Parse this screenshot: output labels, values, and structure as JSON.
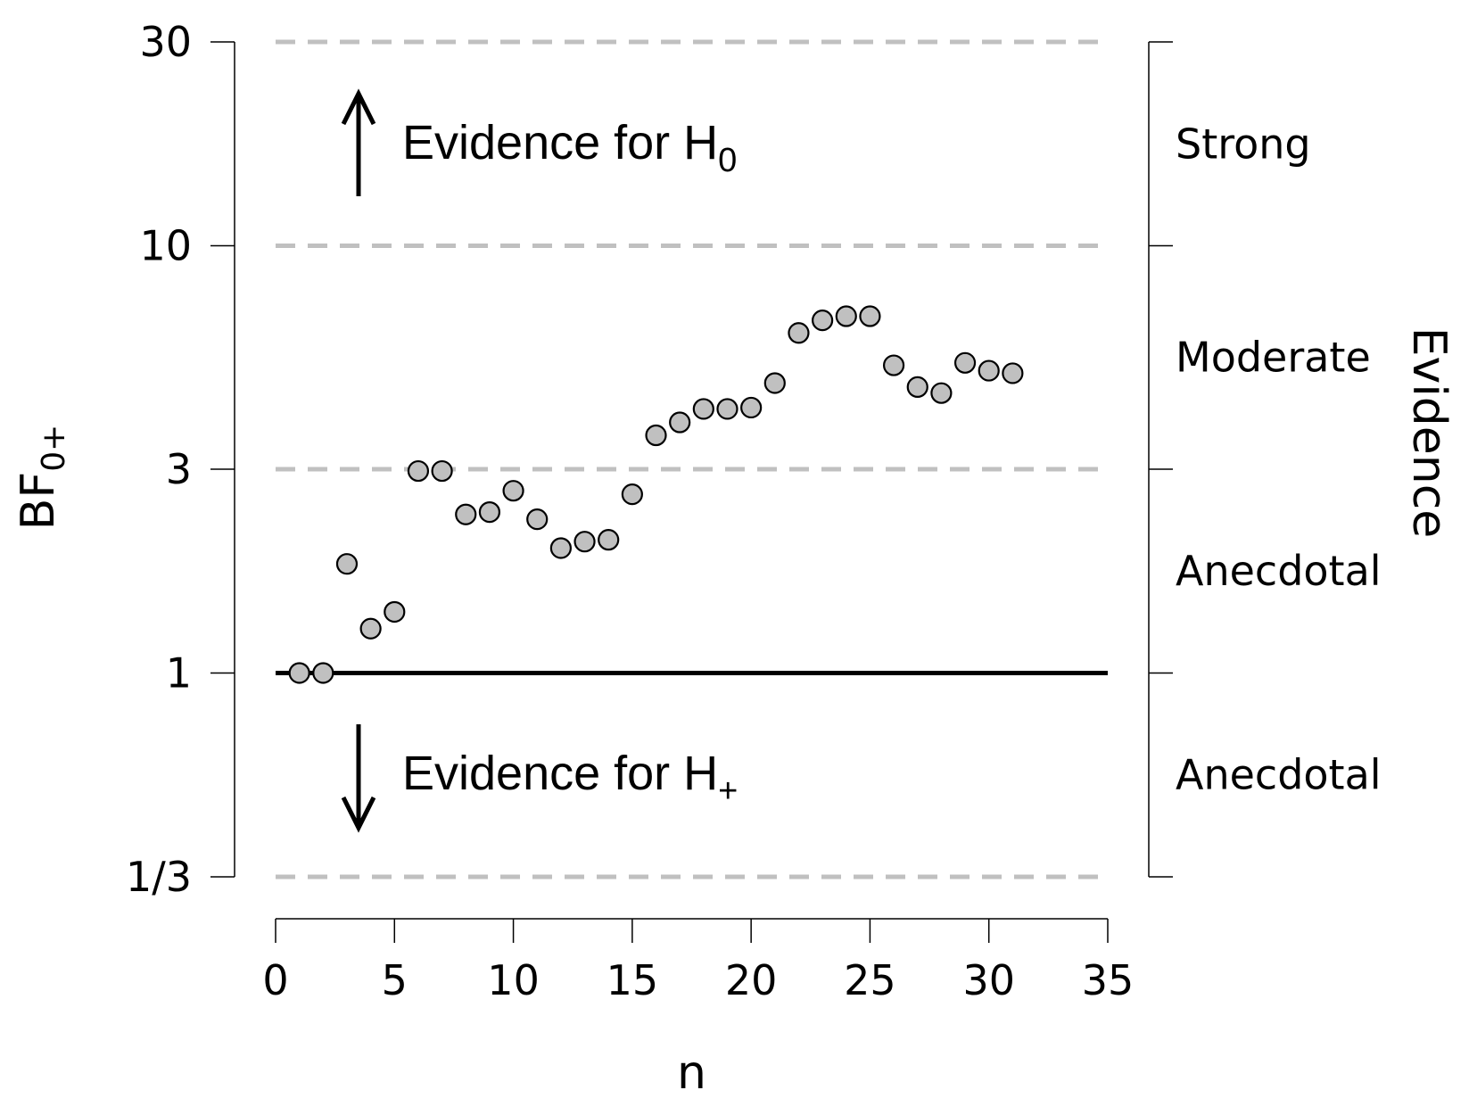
{
  "chart_data": {
    "type": "scatter",
    "xlabel": "n",
    "ylabel": "BF",
    "ylabel_sub": "0+",
    "y_scale": "log",
    "xlim": [
      0,
      35
    ],
    "ylim": [
      0.3333,
      30
    ],
    "x_ticks": [
      0,
      5,
      10,
      15,
      20,
      25,
      30,
      35
    ],
    "x_tick_labels": [
      "0",
      "5",
      "10",
      "15",
      "20",
      "25",
      "30",
      "35"
    ],
    "y_ticks": [
      0.3333,
      1,
      3,
      10,
      30
    ],
    "y_tick_labels": [
      "1/3",
      "1",
      "3",
      "10",
      "30"
    ],
    "dashed_reference_lines": [
      0.3333,
      3,
      10,
      30
    ],
    "solid_reference_line": 1,
    "right_axis_title": "Evidence",
    "evidence_categories": [
      {
        "label": "Strong",
        "from": 10,
        "to": 30
      },
      {
        "label": "Moderate",
        "from": 3,
        "to": 10
      },
      {
        "label": "Anecdotal",
        "from": 1,
        "to": 3
      },
      {
        "label": "Anecdotal",
        "from": 0.3333,
        "to": 1
      }
    ],
    "annotations": [
      {
        "text": "Evidence for H",
        "sub": "0",
        "direction": "up"
      },
      {
        "text": "Evidence for H",
        "sub": "+",
        "direction": "down"
      }
    ],
    "series": [
      {
        "x": [
          1,
          2,
          3,
          4,
          5,
          6,
          7,
          8,
          9,
          10,
          11,
          12,
          13,
          14,
          15,
          16,
          17,
          18,
          19,
          20,
          21,
          22,
          23,
          24,
          25,
          26,
          27,
          28,
          29,
          30,
          31
        ],
        "y": [
          1.0,
          1.0,
          1.8,
          1.27,
          1.39,
          2.97,
          2.97,
          2.35,
          2.38,
          2.67,
          2.29,
          1.96,
          2.03,
          2.05,
          2.62,
          3.6,
          3.86,
          4.15,
          4.15,
          4.18,
          4.77,
          6.25,
          6.69,
          6.84,
          6.84,
          5.25,
          4.67,
          4.52,
          5.32,
          5.1,
          5.03
        ]
      }
    ]
  }
}
